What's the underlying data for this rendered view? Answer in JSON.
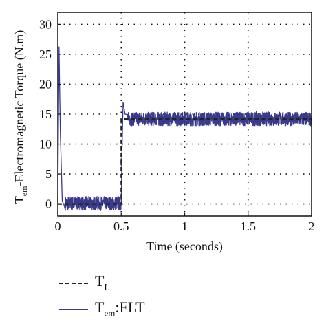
{
  "chart_data": {
    "type": "line",
    "xlabel": "Time (seconds)",
    "ylabel": {
      "base": "T",
      "sub": "em",
      "rest": "-Electromagnetic Torque (N.m)"
    },
    "xlim": [
      0,
      2
    ],
    "ylim": [
      -2,
      32
    ],
    "xticks": [
      "0",
      "0.5",
      "1",
      "1.5",
      "2"
    ],
    "yticks": [
      "0",
      "5",
      "10",
      "15",
      "20",
      "25",
      "30"
    ],
    "grid": "dotted",
    "legend_position": "below",
    "series": [
      {
        "name": "T_L",
        "style": "dashed",
        "color": "#222222",
        "x": [
          0,
          0.5,
          0.5,
          2
        ],
        "y": [
          0,
          0,
          14.2,
          14.2
        ]
      },
      {
        "name": "T_em:FLT",
        "style": "solid-noisy",
        "color": "#3a3a8c",
        "x": [
          0,
          0.01,
          0.02,
          0.035,
          0.05,
          0.06,
          0.5,
          0.505,
          0.515,
          0.53,
          0.55,
          2
        ],
        "y": [
          0,
          26.3,
          12,
          0.5,
          -0.2,
          0.1,
          0.1,
          8,
          17,
          15,
          14.2,
          14.2
        ],
        "noise_amplitude": 1.2,
        "steady_state_segments": [
          {
            "x_start": 0.06,
            "x_end": 0.5,
            "mean": 0.1
          },
          {
            "x_start": 0.55,
            "x_end": 2,
            "mean": 14.2
          }
        ]
      }
    ]
  },
  "legend": [
    {
      "base": "T",
      "sub": "L",
      "rest": ""
    },
    {
      "base": "T",
      "sub": "em",
      "rest": ":FLT"
    }
  ]
}
